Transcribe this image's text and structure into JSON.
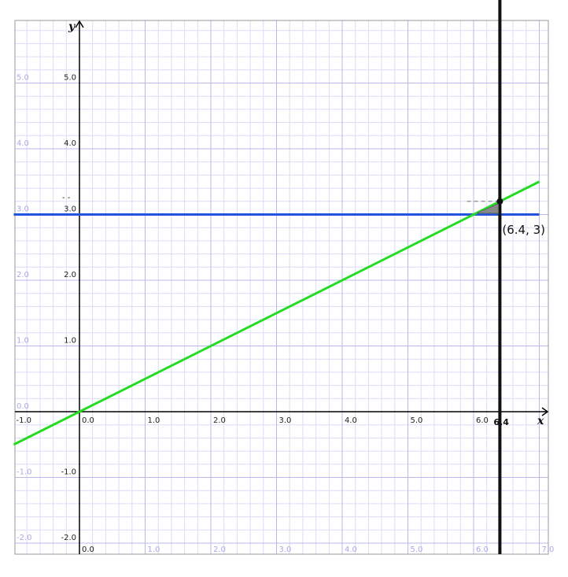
{
  "chart_data": {
    "type": "line",
    "xlim": [
      -1.0,
      7.0
    ],
    "ylim": [
      -2.0,
      6.0
    ],
    "grid": true,
    "axis_names": {
      "x": "x",
      "y": "y"
    },
    "x_ticks": [
      "-1.0",
      "0.0",
      "1.0",
      "2.0",
      "3.0",
      "4.0",
      "5.0",
      "6.0"
    ],
    "x_ticks_bottom": [
      "0.0",
      "1.0",
      "2.0",
      "3.0",
      "4.0",
      "5.0",
      "6.0",
      "7.0"
    ],
    "y_ticks": [
      "-2.0",
      "-1.0",
      "1.0",
      "2.0",
      "3.0",
      "4.0",
      "5.0"
    ],
    "y_ticks_left": [
      "-2.0",
      "-1.0",
      "0.0",
      "1.0",
      "2.0",
      "3.0",
      "4.0",
      "5.0"
    ],
    "series": [
      {
        "color": "#2255dd",
        "x": [
          -1.0,
          7.0
        ],
        "y": [
          3.0,
          3.0
        ]
      },
      {
        "color": "#22dd22",
        "x": [
          -1.0,
          7.0
        ],
        "y": [
          -0.5,
          3.5
        ]
      }
    ],
    "vertical_line": {
      "x": 6.4,
      "label": "6,4",
      "color": "#111111"
    },
    "point": {
      "x": 6.4,
      "y": 3.2,
      "label": "(6.4, 3)"
    },
    "guide_tick_label": "- -",
    "colors": {
      "grid_major": "#b8b8ec",
      "grid_minor": "#dcdcf6",
      "axis": "#000000"
    }
  }
}
